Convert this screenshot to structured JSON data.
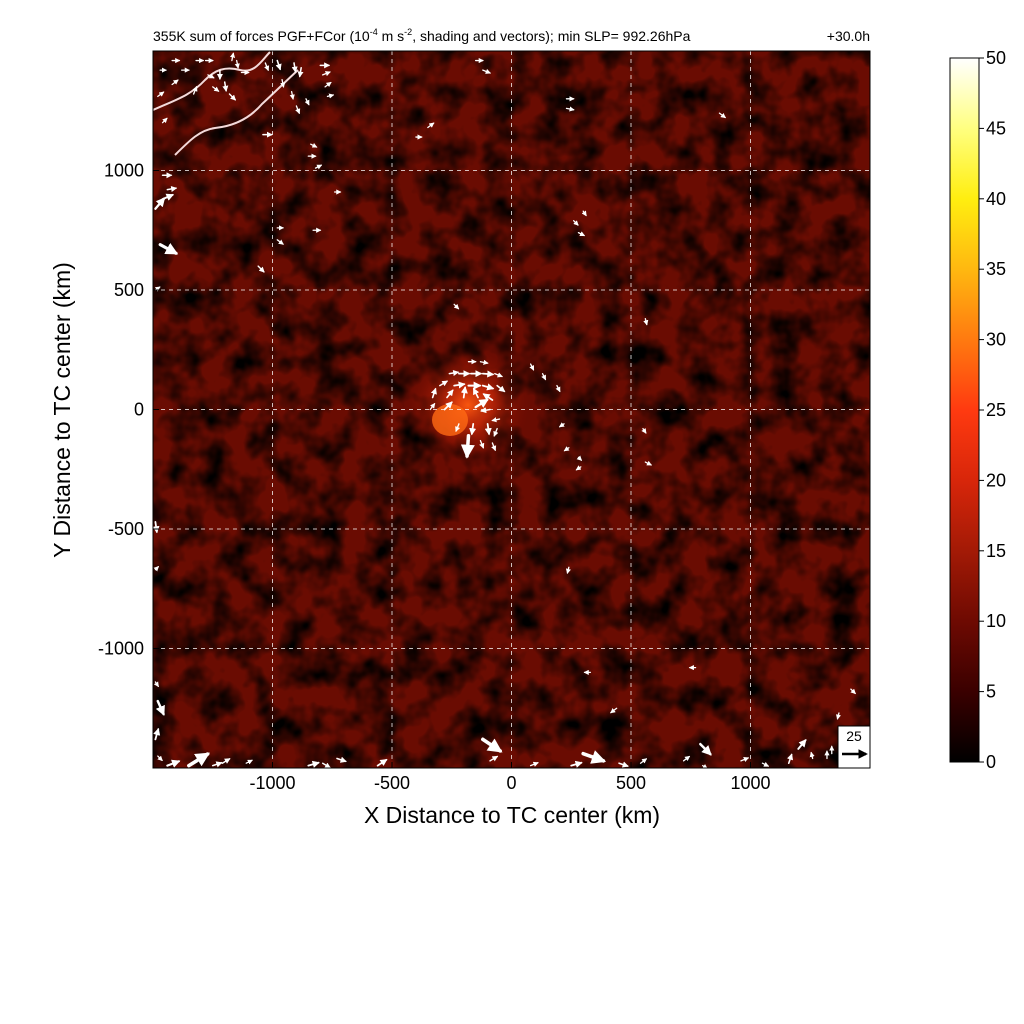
{
  "chart_data": {
    "type": "heatmap",
    "title_main": "355K sum of forces PGF+FCor (10",
    "title_exp1": "-4",
    "title_mid": " m s",
    "title_exp2": "-2",
    "title_rest": ", shading and vectors); min SLP= 992.26hPa",
    "time_label": "+30.0h",
    "xlabel": "X Distance to TC center (km)",
    "ylabel": "Y Distance to TC center (km)",
    "xlim": [
      -1500,
      1500
    ],
    "ylim": [
      -1500,
      1500
    ],
    "x_ticks": [
      -1000,
      -500,
      0,
      500,
      1000
    ],
    "y_ticks": [
      -1000,
      -500,
      0,
      500,
      1000
    ],
    "grid": true,
    "grid_style": "dashed white",
    "colorbar": {
      "min": 0,
      "max": 50,
      "ticks": [
        0,
        5,
        10,
        15,
        20,
        25,
        30,
        35,
        40,
        45,
        50
      ],
      "colors": [
        "#000000",
        "#3a0000",
        "#6e0a02",
        "#a31a06",
        "#d8260a",
        "#ff3a10",
        "#ff7a10",
        "#ffb810",
        "#ffee10",
        "#ffff80",
        "#ffffff"
      ]
    },
    "reference_vector": {
      "magnitude": "25"
    },
    "vectors": [
      {
        "x": -180,
        "y": 200,
        "u": 10,
        "v": 0
      },
      {
        "x": -130,
        "y": 200,
        "u": 10,
        "v": -2
      },
      {
        "x": -260,
        "y": 150,
        "u": 12,
        "v": 2
      },
      {
        "x": -220,
        "y": 150,
        "u": 14,
        "v": 0
      },
      {
        "x": -170,
        "y": 150,
        "u": 14,
        "v": 0
      },
      {
        "x": -120,
        "y": 150,
        "u": 14,
        "v": -1
      },
      {
        "x": -70,
        "y": 150,
        "u": 10,
        "v": -4
      },
      {
        "x": -300,
        "y": 100,
        "u": 10,
        "v": 6
      },
      {
        "x": -240,
        "y": 100,
        "u": 14,
        "v": 2
      },
      {
        "x": -180,
        "y": 100,
        "u": 16,
        "v": 0
      },
      {
        "x": -120,
        "y": 100,
        "u": 14,
        "v": -4
      },
      {
        "x": -60,
        "y": 100,
        "u": 10,
        "v": -8
      },
      {
        "x": -330,
        "y": 50,
        "u": 4,
        "v": 12
      },
      {
        "x": -270,
        "y": 50,
        "u": 8,
        "v": 10
      },
      {
        "x": -200,
        "y": 50,
        "u": 2,
        "v": 14
      },
      {
        "x": -140,
        "y": 50,
        "u": -6,
        "v": 12
      },
      {
        "x": -80,
        "y": 40,
        "u": -12,
        "v": 8
      },
      {
        "x": -340,
        "y": 0,
        "u": 6,
        "v": 8
      },
      {
        "x": -280,
        "y": 0,
        "u": 10,
        "v": 10
      },
      {
        "x": -150,
        "y": 10,
        "u": 16,
        "v": 10
      },
      {
        "x": -90,
        "y": 0,
        "u": -12,
        "v": -2
      },
      {
        "x": -50,
        "y": -40,
        "u": -10,
        "v": -2
      },
      {
        "x": -220,
        "y": -60,
        "u": -4,
        "v": -10
      },
      {
        "x": -160,
        "y": -60,
        "u": -2,
        "v": -14
      },
      {
        "x": -100,
        "y": -60,
        "u": 2,
        "v": -14
      },
      {
        "x": -60,
        "y": -80,
        "u": -4,
        "v": -10
      },
      {
        "x": -180,
        "y": -110,
        "u": -2,
        "v": -28
      },
      {
        "x": -130,
        "y": -130,
        "u": 4,
        "v": -10
      },
      {
        "x": -80,
        "y": -140,
        "u": 4,
        "v": -10
      },
      {
        "x": 80,
        "y": 190,
        "u": 4,
        "v": -8
      },
      {
        "x": 130,
        "y": 150,
        "u": 4,
        "v": -8
      },
      {
        "x": 190,
        "y": 100,
        "u": 4,
        "v": -8
      },
      {
        "x": 220,
        "y": -60,
        "u": -6,
        "v": -4
      },
      {
        "x": 240,
        "y": -160,
        "u": -6,
        "v": -4
      },
      {
        "x": 280,
        "y": -200,
        "u": 4,
        "v": -4
      },
      {
        "x": 290,
        "y": -240,
        "u": -6,
        "v": -4
      },
      {
        "x": 550,
        "y": -80,
        "u": 4,
        "v": -6
      },
      {
        "x": 560,
        "y": -220,
        "u": 8,
        "v": -4
      },
      {
        "x": -240,
        "y": 440,
        "u": 6,
        "v": -6
      },
      {
        "x": 560,
        "y": 380,
        "u": 2,
        "v": -8
      },
      {
        "x": -150,
        "y": 1460,
        "u": 10,
        "v": 0
      },
      {
        "x": -120,
        "y": 1420,
        "u": 10,
        "v": -4
      },
      {
        "x": -350,
        "y": 1180,
        "u": 8,
        "v": 6
      },
      {
        "x": -400,
        "y": 1140,
        "u": 8,
        "v": 0
      },
      {
        "x": 230,
        "y": 1300,
        "u": 10,
        "v": 0
      },
      {
        "x": 230,
        "y": 1260,
        "u": 10,
        "v": -2
      },
      {
        "x": 870,
        "y": 1240,
        "u": 8,
        "v": -6
      },
      {
        "x": 300,
        "y": 830,
        "u": 4,
        "v": -6
      },
      {
        "x": 260,
        "y": 790,
        "u": 6,
        "v": -6
      },
      {
        "x": 280,
        "y": 740,
        "u": 8,
        "v": -4
      },
      {
        "x": -740,
        "y": 910,
        "u": 8,
        "v": 0
      },
      {
        "x": -830,
        "y": 750,
        "u": 10,
        "v": 0
      },
      {
        "x": -980,
        "y": 760,
        "u": 8,
        "v": 0
      },
      {
        "x": -980,
        "y": 710,
        "u": 8,
        "v": -6
      },
      {
        "x": -1060,
        "y": 600,
        "u": 8,
        "v": -8
      },
      {
        "x": -1040,
        "y": 1150,
        "u": 12,
        "v": 0
      },
      {
        "x": -1470,
        "y": 1420,
        "u": 8,
        "v": 0
      },
      {
        "x": -1420,
        "y": 1460,
        "u": 10,
        "v": 0
      },
      {
        "x": -1380,
        "y": 1420,
        "u": 10,
        "v": 0
      },
      {
        "x": -1320,
        "y": 1460,
        "u": 10,
        "v": 0
      },
      {
        "x": -1280,
        "y": 1460,
        "u": 10,
        "v": 0
      },
      {
        "x": -1270,
        "y": 1400,
        "u": 8,
        "v": -4
      },
      {
        "x": -1250,
        "y": 1350,
        "u": 8,
        "v": -6
      },
      {
        "x": -1330,
        "y": 1320,
        "u": 4,
        "v": 10
      },
      {
        "x": -1420,
        "y": 1360,
        "u": 8,
        "v": 6
      },
      {
        "x": -1480,
        "y": 1310,
        "u": 8,
        "v": 6
      },
      {
        "x": -1460,
        "y": 1200,
        "u": 6,
        "v": 6
      },
      {
        "x": -1220,
        "y": 1420,
        "u": 0,
        "v": -12
      },
      {
        "x": -1200,
        "y": 1370,
        "u": 2,
        "v": -12
      },
      {
        "x": -1180,
        "y": 1320,
        "u": 8,
        "v": -8
      },
      {
        "x": -1130,
        "y": 1410,
        "u": 10,
        "v": 0
      },
      {
        "x": -1170,
        "y": 1460,
        "u": 2,
        "v": 10
      },
      {
        "x": -1150,
        "y": 1460,
        "u": 2,
        "v": -10
      },
      {
        "x": -1030,
        "y": 1450,
        "u": 4,
        "v": -10
      },
      {
        "x": -980,
        "y": 1460,
        "u": 4,
        "v": -12
      },
      {
        "x": -960,
        "y": 1380,
        "u": 2,
        "v": -10
      },
      {
        "x": -910,
        "y": 1450,
        "u": 2,
        "v": -12
      },
      {
        "x": -880,
        "y": 1430,
        "u": -2,
        "v": -12
      },
      {
        "x": -920,
        "y": 1330,
        "u": 2,
        "v": -10
      },
      {
        "x": -900,
        "y": 1270,
        "u": 4,
        "v": -10
      },
      {
        "x": -860,
        "y": 1300,
        "u": 4,
        "v": -8
      },
      {
        "x": -800,
        "y": 1440,
        "u": 12,
        "v": 0
      },
      {
        "x": -790,
        "y": 1400,
        "u": 10,
        "v": 4
      },
      {
        "x": -780,
        "y": 1350,
        "u": 8,
        "v": 6
      },
      {
        "x": -770,
        "y": 1310,
        "u": 8,
        "v": 2
      },
      {
        "x": -840,
        "y": 1110,
        "u": 8,
        "v": -4
      },
      {
        "x": -850,
        "y": 1060,
        "u": 10,
        "v": 0
      },
      {
        "x": -820,
        "y": 1010,
        "u": 8,
        "v": 4
      },
      {
        "x": -1460,
        "y": 980,
        "u": 12,
        "v": 0
      },
      {
        "x": -1440,
        "y": 920,
        "u": 12,
        "v": 2
      },
      {
        "x": -1460,
        "y": 880,
        "u": 14,
        "v": 6
      },
      {
        "x": -1490,
        "y": 840,
        "u": 12,
        "v": 14
      },
      {
        "x": -1470,
        "y": 690,
        "u": 22,
        "v": -12
      },
      {
        "x": -1490,
        "y": 500,
        "u": 6,
        "v": 4
      },
      {
        "x": -1490,
        "y": -470,
        "u": 2,
        "v": -14
      },
      {
        "x": -1490,
        "y": -670,
        "u": 4,
        "v": 4
      },
      {
        "x": -1490,
        "y": -1140,
        "u": 4,
        "v": -6
      },
      {
        "x": -1480,
        "y": -1220,
        "u": 8,
        "v": -18
      },
      {
        "x": -1490,
        "y": -1380,
        "u": 4,
        "v": 14
      },
      {
        "x": -1480,
        "y": -1450,
        "u": 6,
        "v": -6
      },
      {
        "x": -1440,
        "y": -1490,
        "u": 16,
        "v": 6
      },
      {
        "x": -1350,
        "y": -1490,
        "u": 26,
        "v": 16
      },
      {
        "x": -1250,
        "y": -1490,
        "u": 12,
        "v": 4
      },
      {
        "x": -1210,
        "y": -1480,
        "u": 10,
        "v": 6
      },
      {
        "x": -1110,
        "y": -1480,
        "u": 8,
        "v": 4
      },
      {
        "x": -850,
        "y": -1490,
        "u": 14,
        "v": 4
      },
      {
        "x": -790,
        "y": -1480,
        "u": 10,
        "v": -6
      },
      {
        "x": -730,
        "y": -1460,
        "u": 12,
        "v": -4
      },
      {
        "x": -560,
        "y": -1490,
        "u": 12,
        "v": 8
      },
      {
        "x": -120,
        "y": -1380,
        "u": 24,
        "v": -16
      },
      {
        "x": -90,
        "y": -1470,
        "u": 10,
        "v": 6
      },
      {
        "x": 80,
        "y": -1490,
        "u": 10,
        "v": 4
      },
      {
        "x": 250,
        "y": -1490,
        "u": 14,
        "v": 4
      },
      {
        "x": 300,
        "y": -1440,
        "u": 28,
        "v": -10
      },
      {
        "x": 450,
        "y": -1480,
        "u": 12,
        "v": -4
      },
      {
        "x": 540,
        "y": -1480,
        "u": 8,
        "v": 6
      },
      {
        "x": 720,
        "y": -1470,
        "u": 8,
        "v": 6
      },
      {
        "x": 790,
        "y": -1400,
        "u": 14,
        "v": -14
      },
      {
        "x": 800,
        "y": -1490,
        "u": 6,
        "v": -4
      },
      {
        "x": 960,
        "y": -1470,
        "u": 10,
        "v": 4
      },
      {
        "x": 1050,
        "y": -1480,
        "u": 8,
        "v": -4
      },
      {
        "x": 1160,
        "y": -1480,
        "u": 4,
        "v": 12
      },
      {
        "x": 1200,
        "y": -1420,
        "u": 10,
        "v": 12
      },
      {
        "x": 1260,
        "y": -1460,
        "u": -2,
        "v": 8
      },
      {
        "x": 1320,
        "y": -1460,
        "u": 0,
        "v": 10
      },
      {
        "x": 1340,
        "y": -1440,
        "u": 0,
        "v": 10
      },
      {
        "x": 1380,
        "y": -1390,
        "u": 6,
        "v": -6
      },
      {
        "x": 1370,
        "y": -1270,
        "u": -2,
        "v": -8
      },
      {
        "x": 1420,
        "y": -1170,
        "u": 6,
        "v": -6
      },
      {
        "x": 330,
        "y": -1100,
        "u": -8,
        "v": 0
      },
      {
        "x": 770,
        "y": -1080,
        "u": -8,
        "v": 0
      },
      {
        "x": 440,
        "y": -1250,
        "u": -8,
        "v": -6
      },
      {
        "x": 240,
        "y": -660,
        "u": -2,
        "v": -8
      }
    ]
  }
}
